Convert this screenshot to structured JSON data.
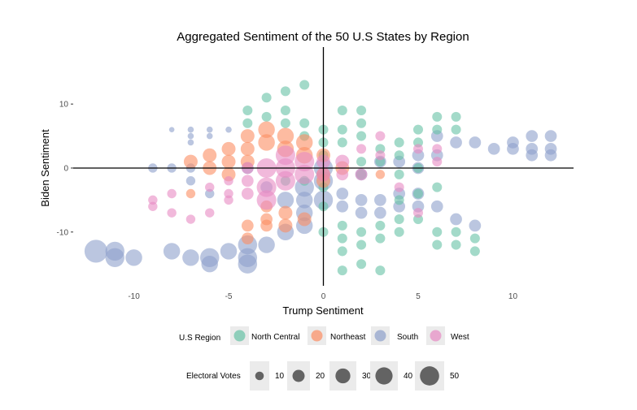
{
  "chart_data": {
    "type": "scatter",
    "title": "Aggregated Sentiment of the 50 U.S States by Region",
    "xlabel": "Trump Sentiment",
    "ylabel": "Biden Sentiment",
    "xlim": [
      -13.2,
      13.2
    ],
    "ylim": [
      -18.4,
      18.9
    ],
    "xticks": [
      -10,
      -5,
      0,
      5,
      10
    ],
    "yticks": [
      -10,
      0,
      10
    ],
    "grid": false,
    "reference_lines": {
      "x": 0,
      "y": 0
    },
    "legend_placement": "bottom",
    "color_legend": {
      "title": "U.S Region",
      "entries": [
        {
          "name": "North Central",
          "color": "#66c2a5"
        },
        {
          "name": "Northeast",
          "color": "#fc8d62"
        },
        {
          "name": "South",
          "color": "#8da0cb"
        },
        {
          "name": "West",
          "color": "#e78ac3"
        }
      ]
    },
    "size_legend": {
      "title": "Electoral Votes",
      "values": [
        10,
        20,
        30,
        40,
        50
      ]
    },
    "point_fields": [
      "trump_sentiment",
      "biden_sentiment",
      "region_index",
      "electoral_votes"
    ],
    "points": [
      [
        -12,
        -13,
        2,
        55
      ],
      [
        -11,
        -13,
        2,
        38
      ],
      [
        -11,
        -14,
        2,
        38
      ],
      [
        -10,
        -14,
        2,
        29
      ],
      [
        -8,
        -13,
        2,
        29
      ],
      [
        -7,
        -14,
        2,
        29
      ],
      [
        -6,
        -14,
        2,
        38
      ],
      [
        -6,
        -15,
        2,
        29
      ],
      [
        -5,
        -13,
        2,
        29
      ],
      [
        -4,
        -12,
        2,
        38
      ],
      [
        -4,
        -14,
        2,
        38
      ],
      [
        -4,
        -15,
        2,
        38
      ],
      [
        -3,
        -12,
        2,
        29
      ],
      [
        -2,
        -10,
        2,
        29
      ],
      [
        -1,
        -9,
        2,
        29
      ],
      [
        -1,
        -7,
        2,
        29
      ],
      [
        -8,
        6,
        2,
        3
      ],
      [
        -7,
        6,
        2,
        4
      ],
      [
        -7,
        5,
        2,
        4
      ],
      [
        -7,
        4,
        2,
        4
      ],
      [
        -6,
        6,
        2,
        4
      ],
      [
        -6,
        5,
        2,
        4
      ],
      [
        -5,
        6,
        2,
        4
      ],
      [
        -9,
        0,
        2,
        9
      ],
      [
        -8,
        0,
        2,
        9
      ],
      [
        -7,
        0,
        2,
        9
      ],
      [
        -7,
        -2,
        2,
        9
      ],
      [
        -6,
        -4,
        2,
        9
      ],
      [
        -4,
        0,
        2,
        15
      ],
      [
        -3,
        -3,
        2,
        15
      ],
      [
        -2,
        -5,
        2,
        29
      ],
      [
        -1,
        -5,
        2,
        29
      ],
      [
        0,
        -5,
        2,
        38
      ],
      [
        1,
        -4,
        2,
        15
      ],
      [
        1,
        -6,
        2,
        15
      ],
      [
        2,
        -5,
        2,
        15
      ],
      [
        2,
        -7,
        2,
        15
      ],
      [
        3,
        -5,
        2,
        15
      ],
      [
        3,
        -7,
        2,
        15
      ],
      [
        4,
        -4,
        2,
        15
      ],
      [
        4,
        -6,
        2,
        15
      ],
      [
        5,
        -4,
        2,
        15
      ],
      [
        5,
        -6,
        2,
        15
      ],
      [
        6,
        -6,
        2,
        15
      ],
      [
        7,
        -8,
        2,
        15
      ],
      [
        8,
        -9,
        2,
        15
      ],
      [
        8,
        4,
        2,
        15
      ],
      [
        9,
        3,
        2,
        15
      ],
      [
        10,
        3,
        2,
        15
      ],
      [
        10,
        4,
        2,
        15
      ],
      [
        11,
        5,
        2,
        15
      ],
      [
        11,
        3,
        2,
        15
      ],
      [
        12,
        5,
        2,
        15
      ],
      [
        12,
        3,
        2,
        15
      ],
      [
        11,
        2,
        2,
        15
      ],
      [
        12,
        2,
        2,
        15
      ],
      [
        6,
        5,
        2,
        15
      ],
      [
        7,
        4,
        2,
        15
      ],
      [
        0,
        0,
        2,
        38
      ],
      [
        0,
        -2,
        2,
        38
      ],
      [
        -1,
        -3,
        2,
        38
      ],
      [
        2,
        -1,
        2,
        15
      ],
      [
        3,
        1,
        2,
        15
      ],
      [
        4,
        1,
        2,
        15
      ],
      [
        5,
        0,
        2,
        15
      ],
      [
        5,
        2,
        2,
        15
      ],
      [
        6,
        2,
        2,
        15
      ],
      [
        -4,
        9,
        0,
        10
      ],
      [
        -4,
        7,
        0,
        10
      ],
      [
        -3,
        11,
        0,
        10
      ],
      [
        -3,
        8,
        0,
        10
      ],
      [
        -2,
        12,
        0,
        10
      ],
      [
        -2,
        9,
        0,
        10
      ],
      [
        -2,
        7,
        0,
        10
      ],
      [
        -1,
        13,
        0,
        10
      ],
      [
        -1,
        7,
        0,
        10
      ],
      [
        -1,
        5,
        0,
        10
      ],
      [
        0,
        6,
        0,
        10
      ],
      [
        0,
        4,
        0,
        10
      ],
      [
        0,
        2,
        0,
        10
      ],
      [
        0,
        -3,
        0,
        10
      ],
      [
        0,
        -6,
        0,
        10
      ],
      [
        0,
        -10,
        0,
        10
      ],
      [
        1,
        9,
        0,
        10
      ],
      [
        1,
        6,
        0,
        10
      ],
      [
        1,
        4,
        0,
        10
      ],
      [
        1,
        -9,
        0,
        10
      ],
      [
        1,
        -11,
        0,
        10
      ],
      [
        1,
        -13,
        0,
        10
      ],
      [
        1,
        -16,
        0,
        10
      ],
      [
        2,
        9,
        0,
        10
      ],
      [
        2,
        7,
        0,
        10
      ],
      [
        2,
        5,
        0,
        10
      ],
      [
        2,
        1,
        0,
        10
      ],
      [
        2,
        -1,
        0,
        10
      ],
      [
        2,
        -10,
        0,
        10
      ],
      [
        2,
        -12,
        0,
        10
      ],
      [
        2,
        -15,
        0,
        10
      ],
      [
        3,
        3,
        0,
        10
      ],
      [
        3,
        1,
        0,
        10
      ],
      [
        3,
        -9,
        0,
        10
      ],
      [
        3,
        -11,
        0,
        10
      ],
      [
        3,
        -16,
        0,
        10
      ],
      [
        4,
        4,
        0,
        10
      ],
      [
        4,
        2,
        0,
        10
      ],
      [
        4,
        -1,
        0,
        10
      ],
      [
        4,
        -5,
        0,
        10
      ],
      [
        4,
        -8,
        0,
        10
      ],
      [
        4,
        -10,
        0,
        10
      ],
      [
        5,
        6,
        0,
        10
      ],
      [
        5,
        4,
        0,
        10
      ],
      [
        5,
        0,
        0,
        10
      ],
      [
        5,
        -4,
        0,
        10
      ],
      [
        5,
        -8,
        0,
        10
      ],
      [
        6,
        8,
        0,
        10
      ],
      [
        6,
        6,
        0,
        10
      ],
      [
        6,
        -3,
        0,
        10
      ],
      [
        6,
        -10,
        0,
        10
      ],
      [
        6,
        -12,
        0,
        10
      ],
      [
        7,
        8,
        0,
        10
      ],
      [
        7,
        6,
        0,
        10
      ],
      [
        7,
        -10,
        0,
        10
      ],
      [
        7,
        -12,
        0,
        10
      ],
      [
        8,
        -11,
        0,
        10
      ],
      [
        8,
        -13,
        0,
        10
      ],
      [
        -2,
        -2,
        0,
        10
      ],
      [
        -1,
        -2,
        0,
        10
      ],
      [
        -7,
        1,
        1,
        20
      ],
      [
        -7,
        -4,
        1,
        9
      ],
      [
        -6,
        2,
        1,
        20
      ],
      [
        -6,
        0,
        1,
        20
      ],
      [
        -5,
        3,
        1,
        20
      ],
      [
        -5,
        1,
        1,
        20
      ],
      [
        -5,
        -1,
        1,
        20
      ],
      [
        -4,
        5,
        1,
        20
      ],
      [
        -4,
        3,
        1,
        20
      ],
      [
        -4,
        1,
        1,
        20
      ],
      [
        -4,
        -9,
        1,
        15
      ],
      [
        -4,
        -11,
        1,
        15
      ],
      [
        -3,
        6,
        1,
        29
      ],
      [
        -3,
        4,
        1,
        29
      ],
      [
        -3,
        -6,
        1,
        15
      ],
      [
        -3,
        -8,
        1,
        15
      ],
      [
        -3,
        -9,
        1,
        15
      ],
      [
        -2,
        5,
        1,
        29
      ],
      [
        -2,
        3,
        1,
        29
      ],
      [
        -2,
        -7,
        1,
        20
      ],
      [
        -2,
        -9,
        1,
        20
      ],
      [
        -1,
        4,
        1,
        29
      ],
      [
        -1,
        2,
        1,
        29
      ],
      [
        -1,
        -8,
        1,
        20
      ],
      [
        0,
        2,
        1,
        20
      ],
      [
        0,
        -1,
        1,
        20
      ],
      [
        0,
        -2,
        1,
        20
      ],
      [
        1,
        0,
        1,
        20
      ],
      [
        3,
        -1,
        1,
        9
      ],
      [
        -9,
        -5,
        3,
        9
      ],
      [
        -9,
        -6,
        3,
        9
      ],
      [
        -8,
        -4,
        3,
        9
      ],
      [
        -8,
        -7,
        3,
        9
      ],
      [
        -7,
        -8,
        3,
        9
      ],
      [
        -6,
        -7,
        3,
        9
      ],
      [
        -6,
        -3,
        3,
        9
      ],
      [
        -5,
        -2,
        3,
        9
      ],
      [
        -5,
        -4,
        3,
        9
      ],
      [
        -5,
        -5,
        3,
        9
      ],
      [
        -4,
        -2,
        3,
        15
      ],
      [
        -4,
        -4,
        3,
        15
      ],
      [
        -4,
        0,
        3,
        15
      ],
      [
        -3,
        0,
        3,
        40
      ],
      [
        -3,
        -3,
        3,
        40
      ],
      [
        -3,
        -5,
        3,
        40
      ],
      [
        -2,
        0,
        3,
        40
      ],
      [
        -2,
        -2,
        3,
        40
      ],
      [
        -2,
        2,
        3,
        40
      ],
      [
        -1,
        1,
        3,
        40
      ],
      [
        -1,
        -1,
        3,
        40
      ],
      [
        0,
        -1,
        3,
        20
      ],
      [
        0,
        1,
        3,
        20
      ],
      [
        1,
        -1,
        3,
        15
      ],
      [
        2,
        -1,
        3,
        15
      ],
      [
        2,
        3,
        3,
        10
      ],
      [
        3,
        5,
        3,
        10
      ],
      [
        3,
        2,
        3,
        10
      ],
      [
        4,
        -3,
        3,
        10
      ],
      [
        5,
        3,
        3,
        10
      ],
      [
        5,
        -7,
        3,
        10
      ],
      [
        6,
        3,
        3,
        10
      ],
      [
        6,
        1,
        3,
        10
      ],
      [
        1,
        1,
        3,
        20
      ]
    ]
  }
}
